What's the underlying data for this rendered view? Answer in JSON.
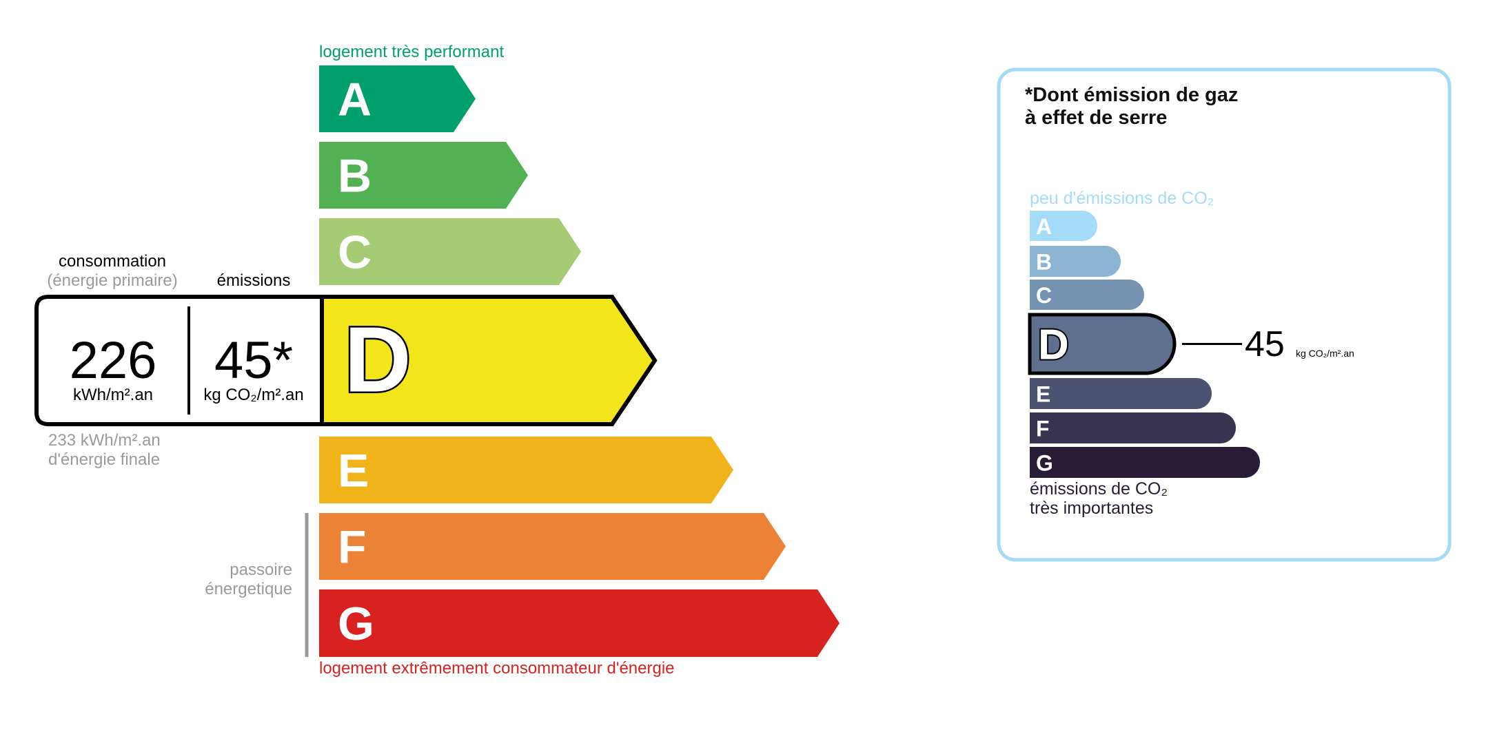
{
  "energy": {
    "top_label": "logement très performant",
    "bottom_label": "logement extrêmement consommateur d'énergie",
    "passoire_label": [
      "passoire",
      "énergetique"
    ],
    "consumption_header": "consommation",
    "consumption_subheader": "(énergie primaire)",
    "emissions_header": "émissions",
    "consumption_value": "226",
    "consumption_unit": "kWh/m².an",
    "emissions_value": "45*",
    "emissions_unit": "kg CO₂/m².an",
    "final_energy_value": "233 kWh/m².an",
    "final_energy_label": "d'énergie finale",
    "selected_class": "D",
    "classes": [
      {
        "letter": "A",
        "color": "#00a06d"
      },
      {
        "letter": "B",
        "color": "#52b153"
      },
      {
        "letter": "C",
        "color": "#a5cc74"
      },
      {
        "letter": "D",
        "color": "#f2e61b"
      },
      {
        "letter": "E",
        "color": "#f0b41a"
      },
      {
        "letter": "F",
        "color": "#eb8235"
      },
      {
        "letter": "G",
        "color": "#d7221f"
      }
    ],
    "top_label_color": "#00a06d",
    "bottom_label_color": "#d7221f"
  },
  "ghg": {
    "title": [
      "*Dont émission de gaz",
      "à effet de serre"
    ],
    "top_label": "peu d'émissions de CO₂",
    "bottom_label": [
      "émissions de CO₂",
      "très importantes"
    ],
    "selected_class": "D",
    "value": "45",
    "unit": "kg CO₂/m².an",
    "border_color": "#a5daf5",
    "classes": [
      {
        "letter": "A",
        "color": "#a4dbf8"
      },
      {
        "letter": "B",
        "color": "#8cb4d3"
      },
      {
        "letter": "C",
        "color": "#7692b1"
      },
      {
        "letter": "D",
        "color": "#5e6f8f"
      },
      {
        "letter": "E",
        "color": "#4d5271"
      },
      {
        "letter": "F",
        "color": "#393551"
      },
      {
        "letter": "G",
        "color": "#281b35"
      }
    ]
  }
}
